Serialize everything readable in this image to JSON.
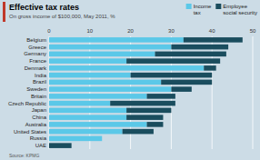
{
  "chart_data": {
    "type": "bar",
    "orientation": "horizontal",
    "stacked": true,
    "title": "Effective tax rates",
    "subtitle": "On gross income of $100,000, May 2011, %",
    "source": "Source: KPMG",
    "categories": [
      "Belgium",
      "Greece",
      "Germany",
      "France",
      "Denmark",
      "India",
      "Brazil",
      "Sweden",
      "Britain",
      "Czech Republic",
      "Japan",
      "China",
      "Australia",
      "United States",
      "Russia",
      "UAE"
    ],
    "series": [
      {
        "name": "Income\ntax",
        "color": "#5bc8e8",
        "values": [
          33,
          30,
          26,
          19,
          38,
          20,
          27.5,
          30,
          24,
          15,
          19,
          19,
          24,
          18,
          13,
          0
        ]
      },
      {
        "name": "Employee\nsocial security",
        "color": "#1a4d5e",
        "values": [
          14.5,
          14,
          17.5,
          23,
          3,
          20,
          12.5,
          5,
          7,
          16,
          11,
          9,
          4,
          7.65,
          0,
          5.5
        ]
      }
    ],
    "xlim": [
      0,
      50
    ],
    "xticks": [
      0,
      10,
      20,
      30,
      40,
      50
    ],
    "grid": true,
    "legend": "upper right"
  }
}
